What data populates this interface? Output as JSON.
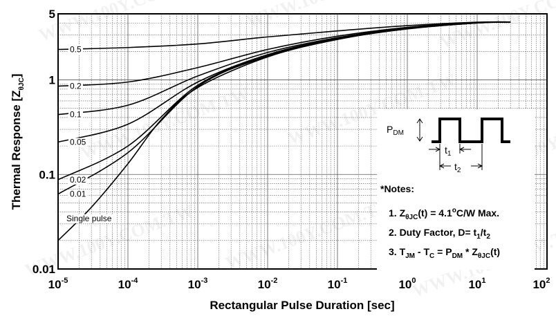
{
  "chart_data": {
    "type": "line",
    "xscale": "log",
    "yscale": "log",
    "xlim": [
      1e-05,
      100
    ],
    "ylim": [
      0.01,
      5
    ],
    "grid": true,
    "xlabel": "Rectangular Pulse Duration [sec]",
    "ylabel_main": "Thermal Response [Z",
    "ylabel_sub": "θJC",
    "ylabel_end": "]",
    "x_ticks": [
      {
        "base": "10",
        "exp": "-5",
        "value": 1e-05
      },
      {
        "base": "10",
        "exp": "-4",
        "value": 0.0001
      },
      {
        "base": "10",
        "exp": "-3",
        "value": 0.001
      },
      {
        "base": "10",
        "exp": "-2",
        "value": 0.01
      },
      {
        "base": "10",
        "exp": "-1",
        "value": 0.1
      },
      {
        "base": "10",
        "exp": "0",
        "value": 1
      },
      {
        "base": "10",
        "exp": "1",
        "value": 10
      },
      {
        "base": "10",
        "exp": "2",
        "value": 100
      }
    ],
    "y_ticks": [
      {
        "label": "5",
        "value": 5
      },
      {
        "label": "1",
        "value": 1
      },
      {
        "label": "0.1",
        "value": 0.1
      },
      {
        "label": "0.01",
        "value": 0.01
      }
    ],
    "series": [
      {
        "name": "0.5",
        "x": [
          1e-05,
          0.0001,
          0.001,
          0.01,
          0.1,
          1,
          10,
          30
        ],
        "y": [
          2.1,
          2.2,
          2.4,
          2.85,
          3.3,
          3.75,
          4.08,
          4.1
        ]
      },
      {
        "name": "0.2",
        "x": [
          1e-05,
          0.0001,
          0.001,
          0.01,
          0.1,
          1,
          10,
          30
        ],
        "y": [
          0.86,
          0.95,
          1.35,
          2.1,
          2.9,
          3.6,
          4.05,
          4.1
        ]
      },
      {
        "name": "0.1",
        "x": [
          1e-05,
          0.0001,
          0.001,
          0.01,
          0.1,
          1,
          10,
          30
        ],
        "y": [
          0.43,
          0.54,
          1.1,
          1.95,
          2.8,
          3.55,
          4.03,
          4.1
        ]
      },
      {
        "name": "0.05",
        "x": [
          1e-05,
          0.0001,
          0.001,
          0.01,
          0.1,
          1,
          10,
          30
        ],
        "y": [
          0.22,
          0.34,
          0.95,
          1.85,
          2.75,
          3.52,
          4.02,
          4.1
        ]
      },
      {
        "name": "0.02",
        "x": [
          1e-05,
          0.0001,
          0.001,
          0.01,
          0.1,
          1,
          10,
          30
        ],
        "y": [
          0.088,
          0.2,
          0.88,
          1.8,
          2.72,
          3.5,
          4.0,
          4.1
        ]
      },
      {
        "name": "0.01",
        "x": [
          1e-05,
          0.0001,
          0.001,
          0.01,
          0.1,
          1,
          10,
          30
        ],
        "y": [
          0.062,
          0.17,
          0.85,
          1.78,
          2.7,
          3.48,
          4.0,
          4.1
        ]
      },
      {
        "name": "Single pulse",
        "x": [
          1e-05,
          3e-05,
          0.0001,
          0.0003,
          0.001,
          0.01,
          0.1,
          1,
          10,
          30
        ],
        "y": [
          0.02,
          0.045,
          0.13,
          0.38,
          0.83,
          1.75,
          2.68,
          3.46,
          4.0,
          4.1
        ]
      }
    ],
    "inset": {
      "pdm": "P",
      "pdm_sub": "DM",
      "t1": "t",
      "t1_sub": "1",
      "t2": "t",
      "t2_sub": "2"
    },
    "notes": {
      "header": "*Notes:",
      "n1_a": "1. Z",
      "n1_sub": "θJC",
      "n1_b": "(t) = 4.1",
      "n1_sup": "o",
      "n1_c": "C/W Max.",
      "n2_a": "2. Duty Factor, D= t",
      "n2_sub1": "1",
      "n2_b": "/t",
      "n2_sub2": "2",
      "n3_a": "3. T",
      "n3_sub1": "JM",
      "n3_b": " - T",
      "n3_sub2": "C",
      "n3_c": " = P",
      "n3_sub3": "DM",
      "n3_d": " * Z",
      "n3_sub4": "θJC",
      "n3_e": "(t)"
    },
    "watermark": "WWW.100Y.COM.TW"
  }
}
